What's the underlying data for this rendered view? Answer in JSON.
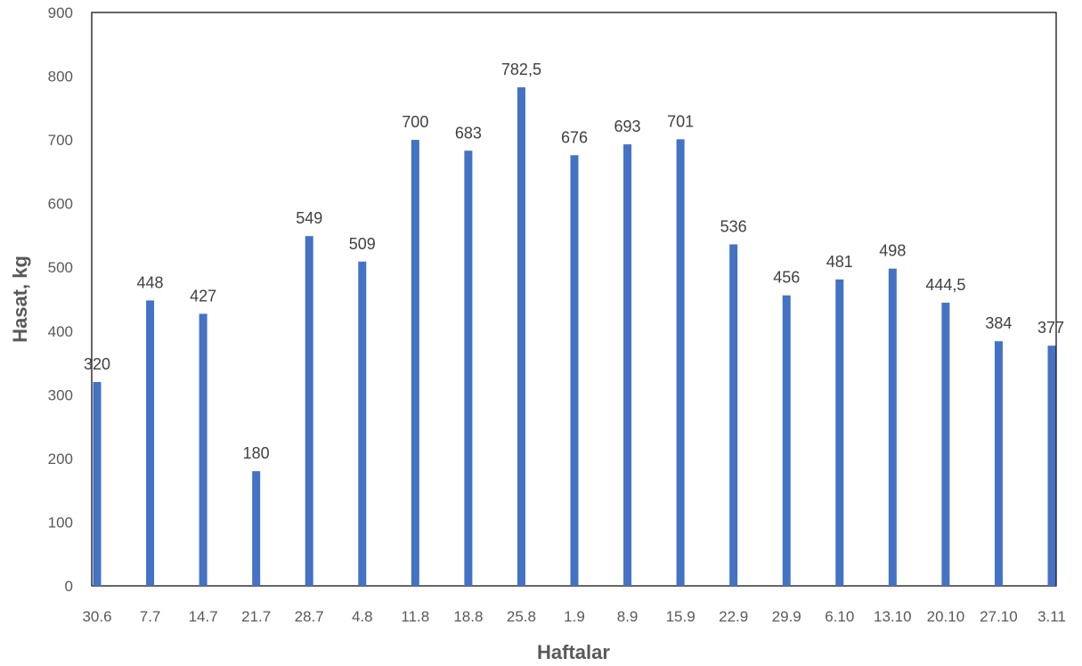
{
  "chart_data": {
    "type": "bar",
    "categories": [
      "30.6",
      "7.7",
      "14.7",
      "21.7",
      "28.7",
      "4.8",
      "11.8",
      "18.8",
      "25.8",
      "1.9",
      "8.9",
      "15.9",
      "22.9",
      "29.9",
      "6.10",
      "13.10",
      "20.10",
      "27.10",
      "3.11"
    ],
    "values": [
      320,
      448,
      427,
      180,
      549,
      509,
      700,
      683,
      782.5,
      676,
      693,
      701,
      536,
      456,
      481,
      498,
      444.5,
      384,
      377
    ],
    "data_labels": [
      "320",
      "448",
      "427",
      "180",
      "549",
      "509",
      "700",
      "683",
      "782,5",
      "676",
      "693",
      "701",
      "536",
      "456",
      "481",
      "498",
      "444,5",
      "384",
      "377"
    ],
    "y_ticks": [
      "0",
      "100",
      "200",
      "300",
      "400",
      "500",
      "600",
      "700",
      "800",
      "900"
    ],
    "xlabel": "Haftalar",
    "ylabel": "Hasat, kg",
    "ylim": [
      0,
      900
    ],
    "grid": false,
    "legend": "none",
    "bar_color": "#4472C4",
    "axis_color": "#000000"
  }
}
